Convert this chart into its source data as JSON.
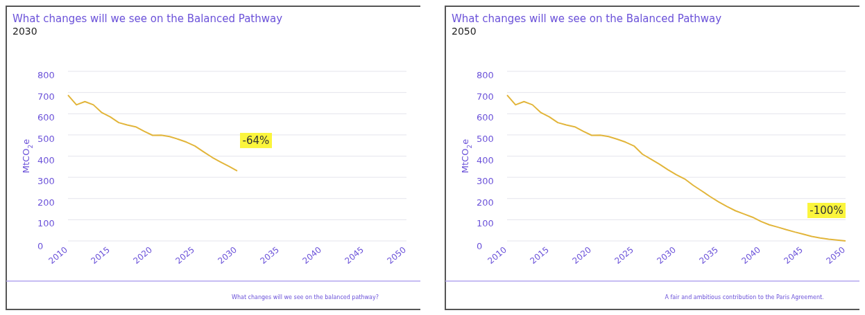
{
  "chart_data": [
    {
      "type": "line",
      "title": "What changes will we see on the Balanced Pathway",
      "subtitle": "2030",
      "ylabel": "MtCO$_{2}$e",
      "x": [
        2010,
        2011,
        2012,
        2013,
        2014,
        2015,
        2016,
        2017,
        2018,
        2019,
        2020,
        2021,
        2022,
        2023,
        2024,
        2025,
        2026,
        2027,
        2028,
        2029,
        2030
      ],
      "series": [
        {
          "color": "#e2b53a",
          "values": [
            688,
            642,
            657,
            642,
            605,
            585,
            558,
            547,
            538,
            517,
            498,
            499,
            492,
            480,
            466,
            448,
            421,
            395,
            373,
            352,
            330
          ]
        }
      ],
      "xlim": [
        2010,
        2050
      ],
      "xticks": [
        2010,
        2015,
        2020,
        2025,
        2030,
        2035,
        2040,
        2045,
        2050
      ],
      "ylim": [
        0,
        800
      ],
      "yticks": [
        0,
        100,
        200,
        300,
        400,
        500,
        600,
        700,
        800
      ],
      "grid": "y",
      "annotations": [
        {
          "text": "-64%",
          "x": 2030,
          "y": 330
        },
        "What changes will we see on the balanced pathway?"
      ]
    },
    {
      "type": "line",
      "title": "What changes will we see on the Balanced Pathway",
      "subtitle": "2050",
      "ylabel": "MtCO$_{2}$e",
      "x": [
        2010,
        2011,
        2012,
        2013,
        2014,
        2015,
        2016,
        2017,
        2018,
        2019,
        2020,
        2021,
        2022,
        2023,
        2024,
        2025,
        2026,
        2027,
        2028,
        2029,
        2030,
        2031,
        2032,
        2033,
        2034,
        2035,
        2036,
        2037,
        2038,
        2039,
        2040,
        2041,
        2042,
        2043,
        2044,
        2045,
        2046,
        2047,
        2048,
        2049,
        2050
      ],
      "series": [
        {
          "color": "#e2b53a",
          "values": [
            688,
            642,
            657,
            642,
            605,
            585,
            558,
            547,
            538,
            517,
            498,
            499,
            492,
            480,
            466,
            448,
            409,
            386,
            362,
            336,
            312,
            292,
            262,
            236,
            209,
            184,
            162,
            142,
            127,
            112,
            92,
            76,
            65,
            53,
            42,
            32,
            21,
            14,
            8,
            4,
            0
          ]
        }
      ],
      "xlim": [
        2010,
        2050
      ],
      "xticks": [
        2010,
        2015,
        2020,
        2025,
        2030,
        2035,
        2040,
        2045,
        2050
      ],
      "ylim": [
        0,
        800
      ],
      "yticks": [
        0,
        100,
        200,
        300,
        400,
        500,
        600,
        700,
        800
      ],
      "grid": "y",
      "annotations": [
        {
          "text": "-100%",
          "x": 2050,
          "y": 0
        },
        "A fair and ambitious contribution to the Paris Agreement."
      ]
    }
  ]
}
